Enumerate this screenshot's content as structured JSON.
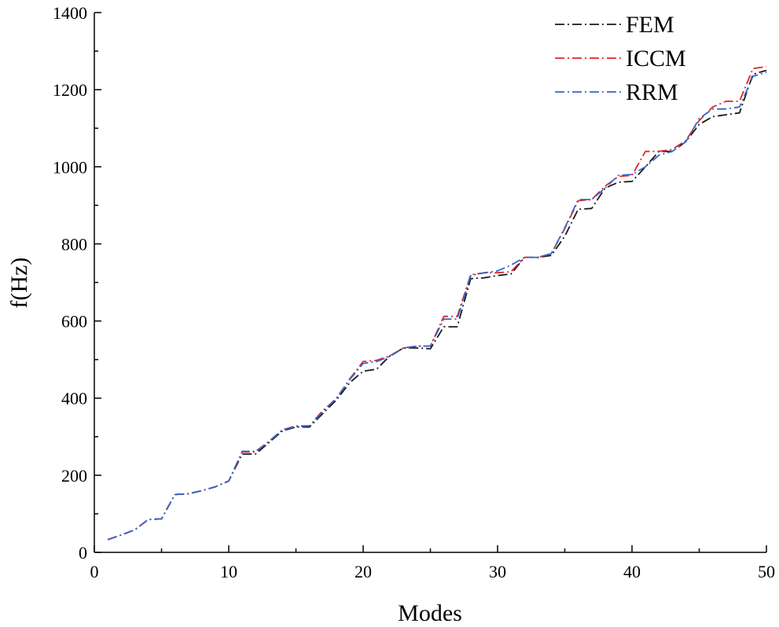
{
  "chart_data": {
    "type": "line",
    "title": "",
    "xlabel": "Modes",
    "ylabel": "f(Hz)",
    "xlim": [
      0,
      50
    ],
    "ylim": [
      0,
      1400
    ],
    "xticks": [
      0,
      10,
      20,
      30,
      40,
      50
    ],
    "yticks": [
      0,
      200,
      400,
      600,
      800,
      1000,
      1200,
      1400
    ],
    "grid": false,
    "legend_position": "top-right",
    "x": [
      1,
      2,
      3,
      4,
      5,
      6,
      7,
      8,
      9,
      10,
      11,
      12,
      13,
      14,
      15,
      16,
      17,
      18,
      19,
      20,
      21,
      22,
      23,
      24,
      25,
      26,
      27,
      28,
      29,
      30,
      31,
      32,
      33,
      34,
      35,
      36,
      37,
      38,
      39,
      40,
      41,
      42,
      43,
      44,
      45,
      46,
      47,
      48,
      49,
      50
    ],
    "series": [
      {
        "name": "FEM",
        "color": "#1a1a1a",
        "values": [
          33,
          45,
          58,
          85,
          87,
          150,
          152,
          160,
          170,
          185,
          255,
          255,
          285,
          315,
          325,
          325,
          360,
          395,
          440,
          470,
          475,
          510,
          530,
          530,
          528,
          585,
          585,
          710,
          712,
          718,
          722,
          765,
          765,
          770,
          820,
          890,
          892,
          945,
          960,
          962,
          1000,
          1040,
          1040,
          1065,
          1110,
          1130,
          1135,
          1140,
          1240,
          1250
        ]
      },
      {
        "name": "ICCM",
        "color": "#e0262b",
        "values": [
          33,
          45,
          58,
          85,
          87,
          150,
          152,
          160,
          170,
          185,
          260,
          260,
          288,
          318,
          328,
          328,
          368,
          398,
          450,
          495,
          498,
          510,
          530,
          535,
          535,
          612,
          612,
          720,
          725,
          725,
          728,
          765,
          765,
          775,
          840,
          912,
          915,
          950,
          975,
          978,
          1040,
          1040,
          1045,
          1068,
          1120,
          1155,
          1170,
          1170,
          1255,
          1260
        ]
      },
      {
        "name": "RRM",
        "color": "#3366cc",
        "values": [
          33,
          45,
          58,
          85,
          87,
          150,
          152,
          160,
          170,
          185,
          262,
          262,
          288,
          318,
          326,
          328,
          365,
          400,
          448,
          490,
          495,
          508,
          530,
          535,
          535,
          605,
          605,
          718,
          725,
          730,
          745,
          765,
          765,
          775,
          842,
          915,
          915,
          945,
          978,
          980,
          1000,
          1030,
          1040,
          1065,
          1125,
          1150,
          1150,
          1155,
          1235,
          1245
        ]
      }
    ]
  }
}
